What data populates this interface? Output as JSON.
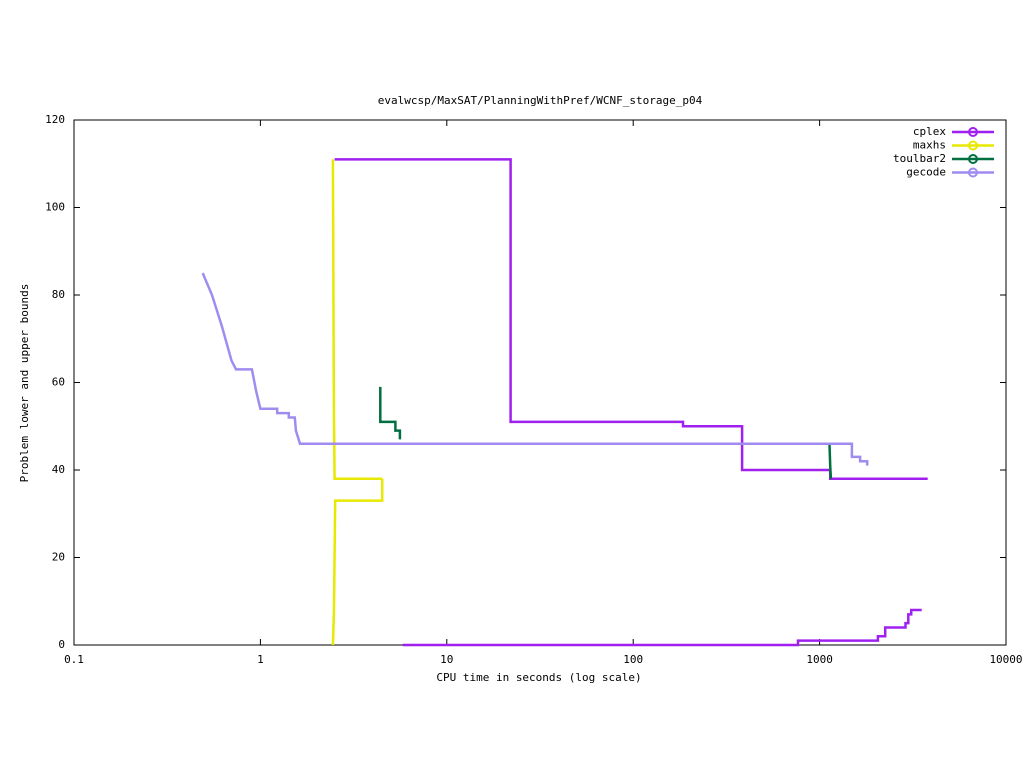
{
  "chart_data": {
    "type": "line",
    "title": "evalwcsp/MaxSAT/PlanningWithPref/WCNF_storage_p04",
    "x_label": "CPU time in seconds (log scale)",
    "y_label": "Problem lower and upper bounds",
    "x_log": true,
    "xlim": [
      0.1,
      10000
    ],
    "xticks": [
      0.1,
      1,
      10,
      100,
      1000,
      10000
    ],
    "ylim": [
      0,
      120
    ],
    "yticks": [
      0,
      20,
      40,
      60,
      80,
      100,
      120
    ],
    "legend": "top-right",
    "series": [
      {
        "name": "cplex",
        "color": "#a020f0",
        "x": [
          2.5,
          22,
          22,
          185,
          185,
          384,
          384,
          1140,
          1140,
          3800,
          null,
          5.8,
          766,
          766,
          2055,
          2055,
          2250,
          2250,
          2890,
          2890,
          2990,
          2990,
          3100,
          3100,
          3530
        ],
        "values": [
          111,
          111,
          51,
          51,
          50,
          50,
          40,
          40,
          38,
          38,
          null,
          0,
          0,
          1,
          1,
          2,
          2,
          4,
          4,
          5,
          5,
          7,
          7,
          8,
          8
        ]
      },
      {
        "name": "maxhs",
        "color": "#e8e800",
        "x": [
          2.45,
          2.48,
          2.5,
          4.5,
          null,
          2.45,
          2.48,
          2.52,
          4.5,
          4.5
        ],
        "values": [
          111,
          54,
          38,
          38,
          null,
          0,
          7,
          33,
          33,
          38
        ]
      },
      {
        "name": "toulbar2",
        "color": "#007040",
        "x": [
          4.4,
          4.4,
          4.5,
          5.3,
          5.3,
          5.6,
          5.6,
          null,
          1130,
          1140,
          1150
        ],
        "values": [
          59,
          51,
          51,
          51,
          49,
          49,
          47,
          null,
          46,
          41,
          38
        ]
      },
      {
        "name": "gecode",
        "color": "#a08cf0",
        "x": [
          0.49,
          0.55,
          0.62,
          0.7,
          0.74,
          0.9,
          0.95,
          1.0,
          1.23,
          1.23,
          1.42,
          1.42,
          1.53,
          1.55,
          1.63,
          1490,
          1490,
          1650,
          1650,
          1800,
          1800
        ],
        "values": [
          85,
          80,
          73,
          65,
          63,
          63,
          58,
          54,
          54,
          53,
          53,
          52,
          52,
          49,
          46,
          46,
          43,
          43,
          42,
          42,
          41
        ]
      }
    ]
  }
}
